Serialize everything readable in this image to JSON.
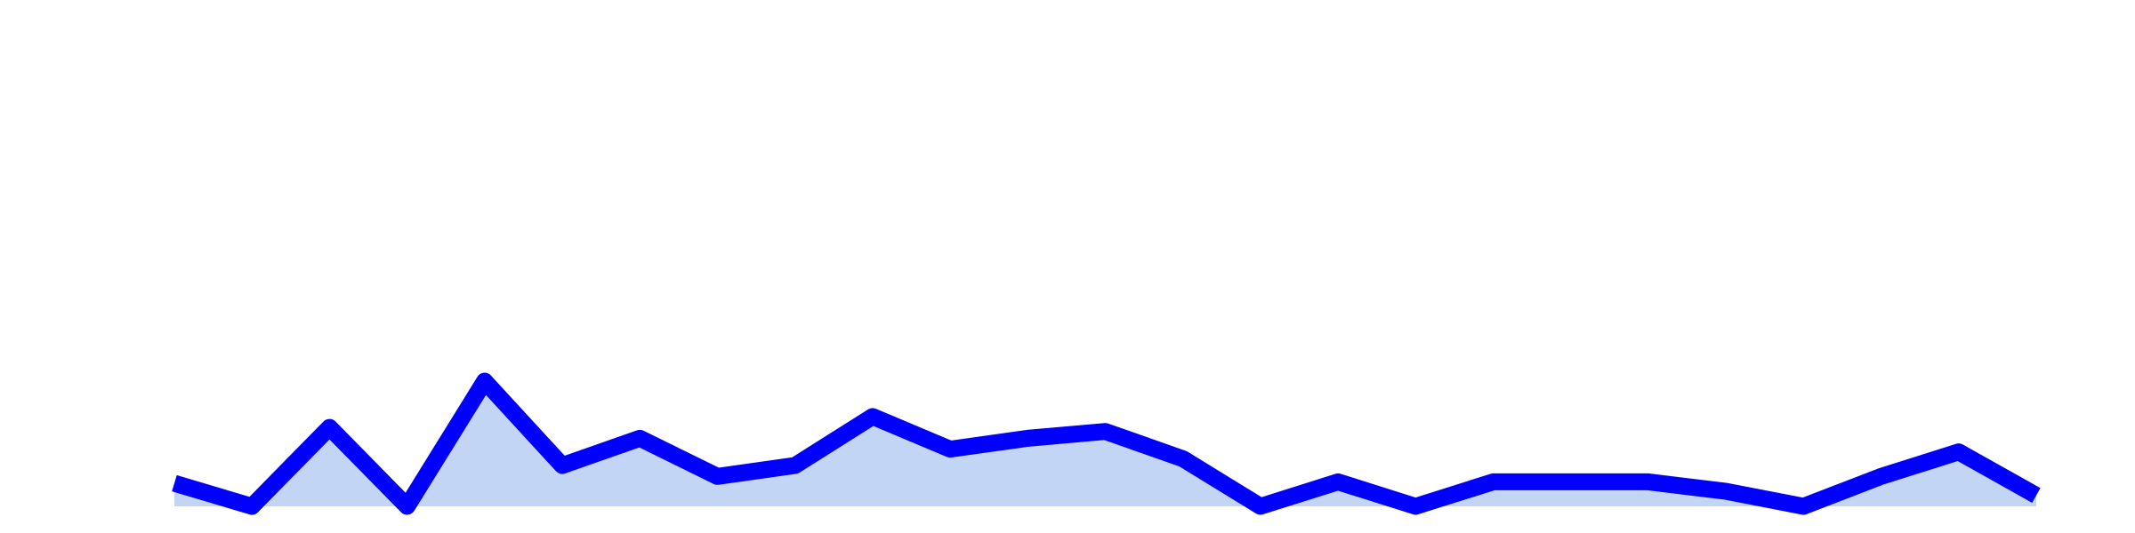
{
  "chart_data": {
    "type": "area",
    "values": [
      17,
      0,
      58,
      0,
      92,
      30,
      50,
      22,
      30,
      66,
      42,
      50,
      55,
      35,
      0,
      18,
      0,
      18,
      18,
      18,
      11,
      0,
      22,
      40,
      8
    ],
    "ylim": [
      0,
      372
    ],
    "color": "#0000ff",
    "fill_color": "#c2d5f5"
  }
}
